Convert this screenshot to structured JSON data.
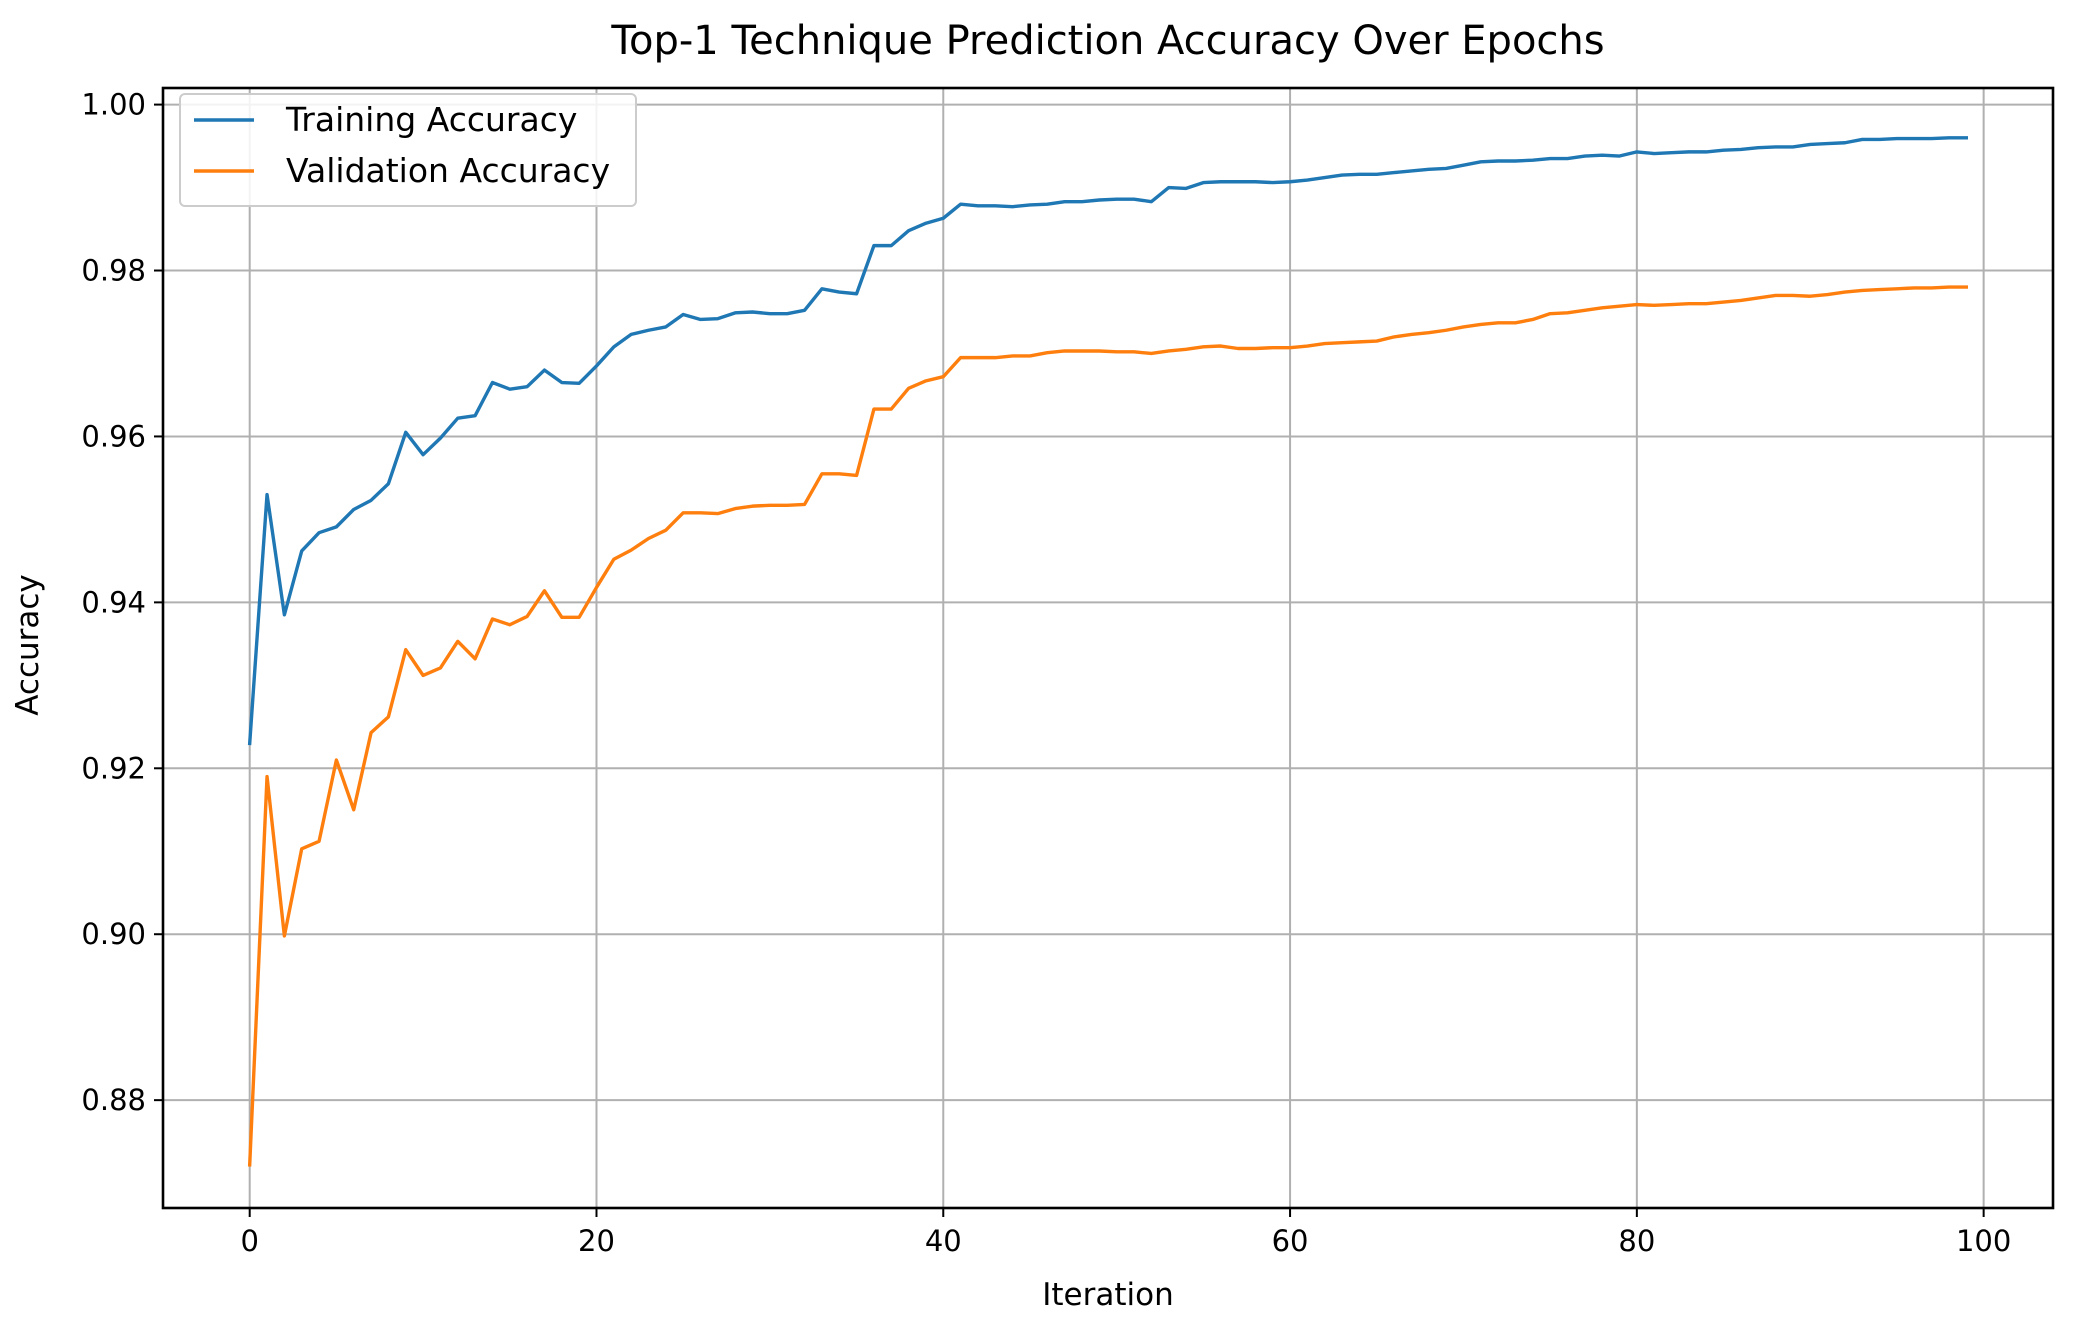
{
  "chart_data": {
    "type": "line",
    "title": "Top-1 Technique Prediction Accuracy Over Epochs",
    "xlabel": "Iteration",
    "ylabel": "Accuracy",
    "xlim": [
      -5,
      104
    ],
    "ylim": [
      0.867,
      1.002
    ],
    "xticks": [
      0,
      20,
      40,
      60,
      80,
      100
    ],
    "yticks": [
      0.88,
      0.9,
      0.92,
      0.94,
      0.96,
      0.98,
      1.0
    ],
    "xtick_labels": [
      "0",
      "20",
      "40",
      "60",
      "80",
      "100"
    ],
    "ytick_labels": [
      "0.88",
      "0.90",
      "0.92",
      "0.94",
      "0.96",
      "0.98",
      "1.00"
    ],
    "grid": true,
    "legend_position": "upper-left",
    "series": [
      {
        "name": "Training Accuracy",
        "color": "#1f77b4",
        "values": [
          0.923,
          0.953,
          0.9385,
          0.9462,
          0.9484,
          0.9491,
          0.9512,
          0.9523,
          0.9543,
          0.9605,
          0.9578,
          0.9598,
          0.9622,
          0.9625,
          0.9665,
          0.9657,
          0.966,
          0.968,
          0.9665,
          0.9664,
          0.9685,
          0.9708,
          0.9723,
          0.9728,
          0.9732,
          0.9747,
          0.9741,
          0.9742,
          0.9749,
          0.975,
          0.9748,
          0.9748,
          0.9752,
          0.9778,
          0.9774,
          0.9772,
          0.983,
          0.983,
          0.9848,
          0.9857,
          0.9863,
          0.988,
          0.9878,
          0.9878,
          0.9877,
          0.9879,
          0.988,
          0.9883,
          0.9883,
          0.9885,
          0.9886,
          0.9886,
          0.9883,
          0.99,
          0.9899,
          0.9906,
          0.9907,
          0.9907,
          0.9907,
          0.9906,
          0.9907,
          0.9909,
          0.9912,
          0.9915,
          0.9916,
          0.9916,
          0.9918,
          0.992,
          0.9922,
          0.9923,
          0.9927,
          0.9931,
          0.9932,
          0.9932,
          0.9933,
          0.9935,
          0.9935,
          0.9938,
          0.9939,
          0.9938,
          0.9943,
          0.9941,
          0.9942,
          0.9943,
          0.9943,
          0.9945,
          0.9946,
          0.9948,
          0.9949,
          0.9949,
          0.9952,
          0.9953,
          0.9954,
          0.9958,
          0.9958,
          0.9959,
          0.9959,
          0.9959,
          0.996,
          0.996
        ]
      },
      {
        "name": "Validation Accuracy",
        "color": "#ff7f0e",
        "values": [
          0.8722,
          0.919,
          0.8998,
          0.9103,
          0.9112,
          0.921,
          0.915,
          0.9243,
          0.9262,
          0.9343,
          0.9312,
          0.9321,
          0.9353,
          0.9332,
          0.938,
          0.9373,
          0.9383,
          0.9414,
          0.9382,
          0.9382,
          0.9418,
          0.9452,
          0.9463,
          0.9477,
          0.9487,
          0.9508,
          0.9508,
          0.9507,
          0.9513,
          0.9516,
          0.9517,
          0.9517,
          0.9518,
          0.9555,
          0.9555,
          0.9553,
          0.9633,
          0.9633,
          0.9658,
          0.9667,
          0.9672,
          0.9695,
          0.9695,
          0.9695,
          0.9697,
          0.9697,
          0.9701,
          0.9703,
          0.9703,
          0.9703,
          0.9702,
          0.9702,
          0.97,
          0.9703,
          0.9705,
          0.9708,
          0.9709,
          0.9706,
          0.9706,
          0.9707,
          0.9707,
          0.9709,
          0.9712,
          0.9713,
          0.9714,
          0.9715,
          0.972,
          0.9723,
          0.9725,
          0.9728,
          0.9732,
          0.9735,
          0.9737,
          0.9737,
          0.9741,
          0.9748,
          0.9749,
          0.9752,
          0.9755,
          0.9757,
          0.9759,
          0.9758,
          0.9759,
          0.976,
          0.976,
          0.9762,
          0.9764,
          0.9767,
          0.977,
          0.977,
          0.9769,
          0.9771,
          0.9774,
          0.9776,
          0.9777,
          0.9778,
          0.9779,
          0.9779,
          0.978,
          0.978
        ]
      }
    ]
  }
}
